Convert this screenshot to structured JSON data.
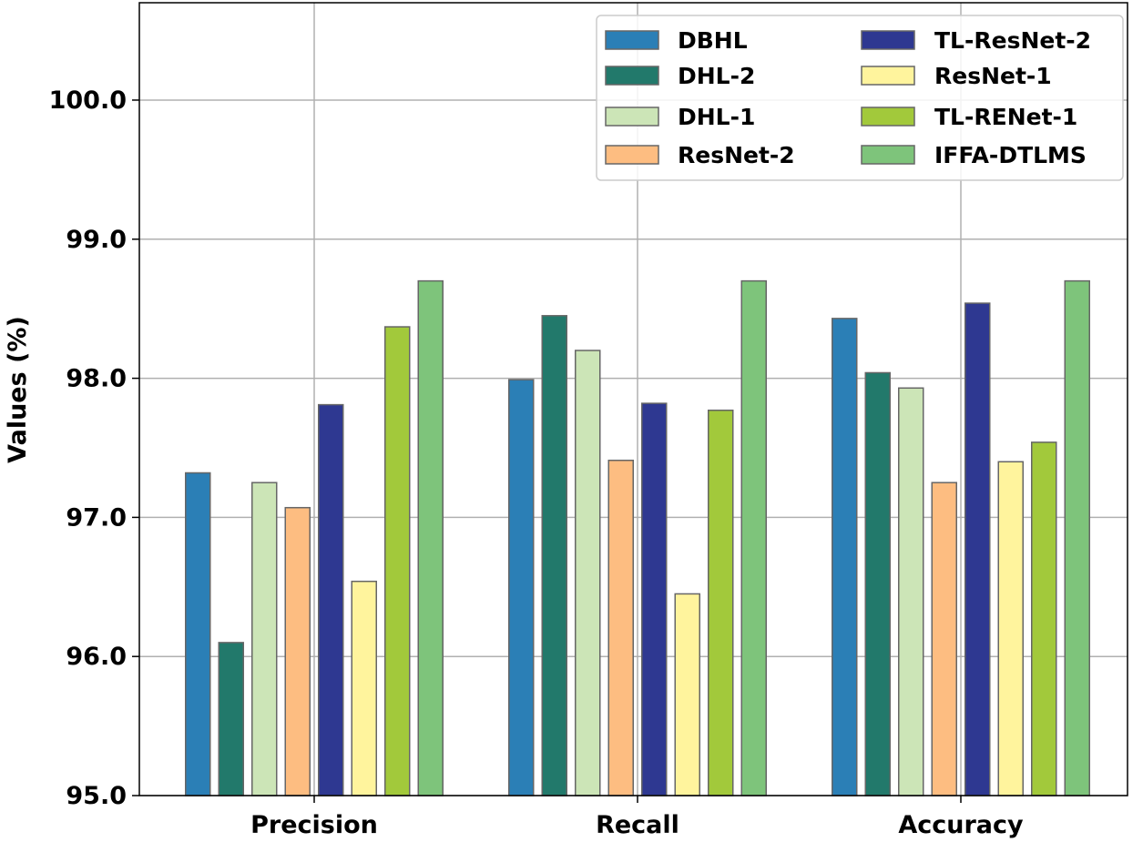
{
  "chart_data": {
    "type": "bar",
    "title": "",
    "xlabel": "",
    "ylabel": "Values (%)",
    "ylim": [
      95.0,
      100.7
    ],
    "yticks": [
      "95.0",
      "96.0",
      "97.0",
      "98.0",
      "99.0",
      "100.0"
    ],
    "ytick_values": [
      95.0,
      96.0,
      97.0,
      98.0,
      99.0,
      100.0
    ],
    "grid": true,
    "legend_position": "top-right",
    "categories": [
      "Precision",
      "Recall",
      "Accuracy"
    ],
    "series": [
      {
        "name": "DBHL",
        "color": "#2b7fb6",
        "values": [
          97.32,
          97.99,
          98.43
        ]
      },
      {
        "name": "DHL-2",
        "color": "#22796b",
        "values": [
          96.1,
          98.45,
          98.04
        ]
      },
      {
        "name": "DHL-1",
        "color": "#cce5b7",
        "values": [
          97.25,
          98.2,
          97.93
        ]
      },
      {
        "name": "ResNet-2",
        "color": "#fdbd81",
        "values": [
          97.07,
          97.41,
          97.25
        ]
      },
      {
        "name": "TL-ResNet-2",
        "color": "#2e3891",
        "values": [
          97.81,
          97.82,
          98.54
        ]
      },
      {
        "name": "ResNet-1",
        "color": "#fff49d",
        "values": [
          96.54,
          96.45,
          97.4
        ]
      },
      {
        "name": "TL-RENet-1",
        "color": "#a2c93b",
        "values": [
          98.37,
          97.77,
          97.54
        ]
      },
      {
        "name": "IFFA-DTLMS",
        "color": "#7ec47b",
        "values": [
          98.7,
          98.7,
          98.7
        ]
      }
    ]
  }
}
